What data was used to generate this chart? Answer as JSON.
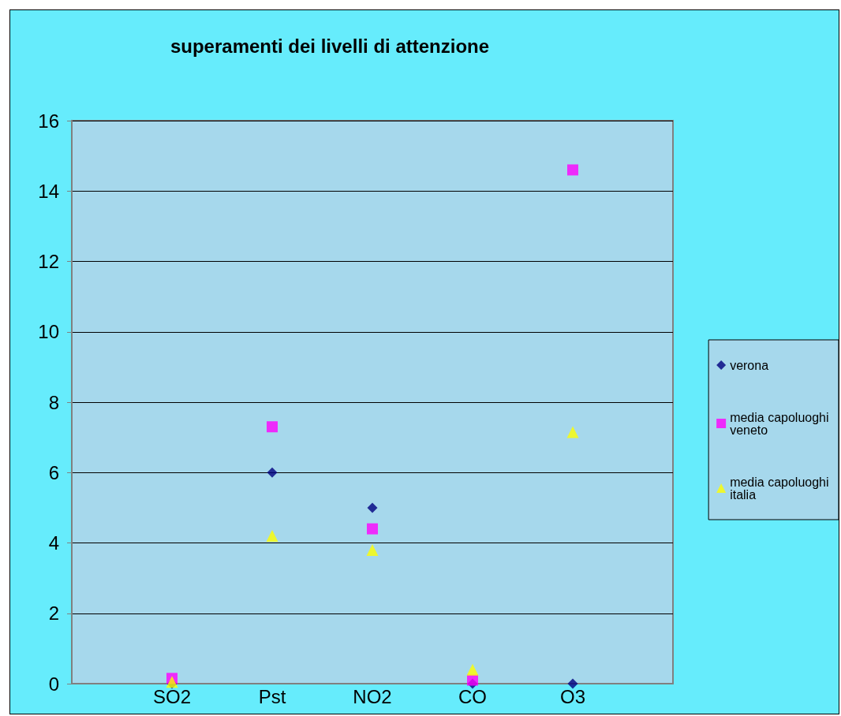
{
  "chart_data": {
    "type": "scatter",
    "title": "superamenti dei livelli di attenzione",
    "categories": [
      "SO2",
      "Pst",
      "NO2",
      "CO",
      "O3"
    ],
    "series": [
      {
        "name": "verona",
        "color": "#000080",
        "marker": "diamond",
        "values": [
          0,
          6,
          5,
          0,
          0
        ]
      },
      {
        "name": "media capoluoghi veneto",
        "color": "#ff00ff",
        "marker": "square",
        "values": [
          0.15,
          7.3,
          4.4,
          0.1,
          14.6
        ]
      },
      {
        "name": "media capoluoghi italia",
        "color": "#ffff00",
        "marker": "triangle",
        "values": [
          0.05,
          4.2,
          3.8,
          0.4,
          7.15
        ]
      }
    ],
    "ylim": [
      0,
      16
    ],
    "yticks": [
      0,
      2,
      4,
      6,
      8,
      10,
      12,
      14,
      16
    ],
    "grid": "y",
    "legend": "right"
  }
}
